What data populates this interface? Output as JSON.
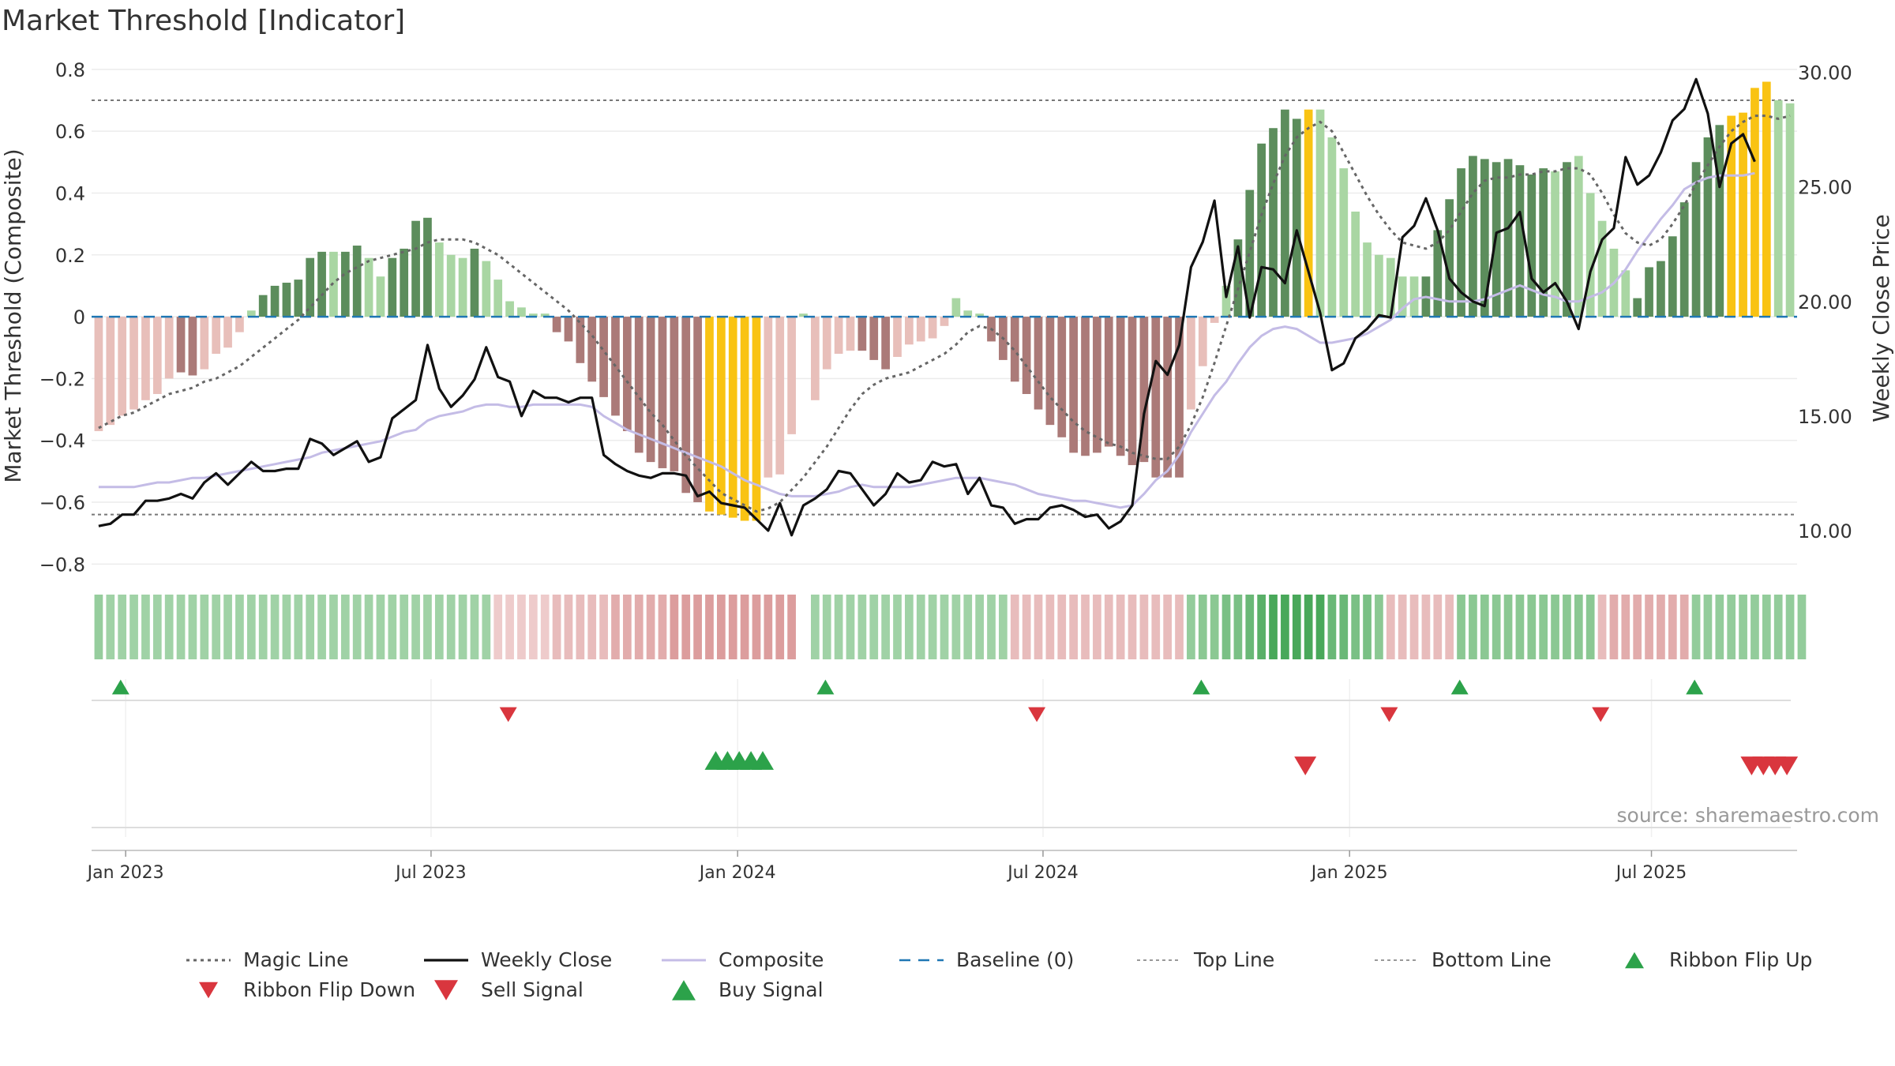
{
  "chart_data": {
    "type": "bar",
    "title": "Market Threshold [Indicator]",
    "ylabel": "Market Threshold (Composite)",
    "ylabel_right": "Weekly Close Price",
    "ylim": [
      -0.84,
      0.82
    ],
    "ylim_right": [
      8.0,
      30.4
    ],
    "y_ticks": [
      0.8,
      0.6,
      0.4,
      0.2,
      0,
      -0.2,
      -0.4,
      -0.6,
      -0.8
    ],
    "y_tick_labels": [
      "0.8",
      "0.6",
      "0.4",
      "0.2",
      "0",
      "−0.2",
      "−0.4",
      "−0.6",
      "−0.8"
    ],
    "y_right_ticks": [
      30,
      25,
      20,
      15,
      10
    ],
    "y_right_tick_labels": [
      "30.00",
      "25.00",
      "20.00",
      "15.00",
      "10.00"
    ],
    "x_ticks": [
      2.3,
      28.3,
      54.4,
      80.4,
      106.5,
      132.2
    ],
    "x_tick_labels": [
      "Jan 2023",
      "Jul 2023",
      "Jan 2024",
      "Jul 2024",
      "Jan 2025",
      "Jul 2025"
    ],
    "x_range": [
      -0.6,
      144.6
    ],
    "top_line": 0.7,
    "bottom_line": -0.64,
    "baseline": 0,
    "bar_colors": {
      "strong_pos": "#5c8d5c",
      "weak_pos": "#a9d6a3",
      "strong_neg": "#ab7a78",
      "weak_neg": "#e8bfba",
      "extreme": "#f9c313"
    },
    "composite_bars": [
      -0.37,
      -0.35,
      -0.32,
      -0.3,
      -0.27,
      -0.25,
      -0.2,
      -0.18,
      -0.19,
      -0.17,
      -0.12,
      -0.1,
      -0.05,
      0.02,
      0.07,
      0.1,
      0.11,
      0.12,
      0.19,
      0.21,
      0.21,
      0.21,
      0.23,
      0.19,
      0.13,
      0.19,
      0.22,
      0.31,
      0.32,
      0.24,
      0.2,
      0.19,
      0.22,
      0.18,
      0.12,
      0.05,
      0.03,
      0.01,
      0.01,
      -0.05,
      -0.08,
      -0.15,
      -0.21,
      -0.26,
      -0.32,
      -0.37,
      -0.44,
      -0.47,
      -0.49,
      -0.5,
      -0.57,
      -0.6,
      -0.63,
      -0.64,
      -0.65,
      -0.66,
      -0.66,
      -0.52,
      -0.51,
      -0.38,
      0.01,
      -0.27,
      -0.17,
      -0.12,
      -0.11,
      -0.11,
      -0.14,
      -0.17,
      -0.13,
      -0.09,
      -0.08,
      -0.07,
      -0.03,
      0.06,
      0.02,
      0.01,
      -0.08,
      -0.14,
      -0.21,
      -0.25,
      -0.3,
      -0.35,
      -0.39,
      -0.44,
      -0.45,
      -0.44,
      -0.42,
      -0.45,
      -0.48,
      -0.47,
      -0.52,
      -0.52,
      -0.52,
      -0.3,
      -0.16,
      -0.02,
      0.1,
      0.25,
      0.41,
      0.56,
      0.61,
      0.67,
      0.64,
      0.67,
      0.67,
      0.58,
      0.48,
      0.34,
      0.24,
      0.2,
      0.19,
      0.13,
      0.13,
      0.13,
      0.28,
      0.38,
      0.48,
      0.52,
      0.51,
      0.5,
      0.51,
      0.49,
      0.46,
      0.48,
      0.47,
      0.5,
      0.52,
      0.4,
      0.31,
      0.22,
      0.15,
      0.06,
      0.16,
      0.18,
      0.26,
      0.37,
      0.5,
      0.58,
      0.62,
      0.65,
      0.66,
      0.74,
      0.76,
      0.7,
      0.69
    ],
    "bar_strength": [
      0,
      0,
      0,
      0,
      0,
      0,
      0,
      1,
      1,
      0,
      0,
      0,
      0,
      0,
      1,
      1,
      1,
      1,
      1,
      1,
      0,
      1,
      1,
      0,
      0,
      1,
      1,
      1,
      1,
      0,
      0,
      0,
      1,
      0,
      0,
      0,
      0,
      0,
      0,
      1,
      1,
      1,
      1,
      1,
      1,
      1,
      1,
      1,
      1,
      1,
      1,
      1,
      2,
      2,
      2,
      2,
      2,
      0,
      0,
      0,
      0,
      0,
      0,
      0,
      0,
      1,
      1,
      1,
      0,
      0,
      0,
      0,
      0,
      0,
      0,
      0,
      1,
      1,
      1,
      1,
      1,
      1,
      1,
      1,
      1,
      1,
      1,
      1,
      1,
      1,
      1,
      1,
      1,
      0,
      0,
      0,
      0,
      1,
      1,
      1,
      1,
      1,
      1,
      2,
      0,
      0,
      0,
      0,
      0,
      0,
      0,
      0,
      0,
      1,
      1,
      1,
      1,
      1,
      1,
      1,
      1,
      1,
      1,
      1,
      0,
      1,
      0,
      0,
      0,
      0,
      0,
      1,
      1,
      1,
      1,
      1,
      1,
      1,
      1,
      2,
      2,
      2,
      2
    ],
    "weekly_close": [
      10.2,
      10.3,
      10.7,
      10.7,
      11.3,
      11.3,
      11.4,
      11.6,
      11.4,
      12.1,
      12.5,
      12.0,
      12.5,
      13.0,
      12.6,
      12.6,
      12.7,
      12.7,
      14.0,
      13.8,
      13.3,
      13.6,
      13.9,
      13.0,
      13.2,
      14.9,
      15.3,
      15.7,
      18.1,
      16.2,
      15.4,
      15.9,
      16.6,
      18.0,
      16.7,
      16.5,
      15.0,
      16.1,
      15.8,
      15.8,
      15.6,
      15.8,
      15.8,
      13.3,
      12.9,
      12.6,
      12.4,
      12.3,
      12.5,
      12.5,
      12.4,
      11.5,
      11.7,
      11.2,
      11.1,
      11.0,
      10.5,
      10.0,
      11.2,
      9.8,
      11.1,
      11.4,
      11.8,
      12.6,
      12.5,
      11.8,
      11.1,
      11.6,
      12.5,
      12.1,
      12.2,
      13.0,
      12.8,
      12.9,
      11.6,
      12.3,
      11.1,
      11.0,
      10.3,
      10.5,
      10.5,
      11.0,
      11.1,
      10.9,
      10.6,
      10.7,
      10.1,
      10.4,
      11.1,
      15.1,
      17.4,
      16.8,
      18.1,
      21.5,
      22.6,
      24.4,
      20.2,
      22.4,
      19.3,
      21.5,
      21.4,
      20.8,
      23.1,
      21.3,
      19.5,
      17.0,
      17.3,
      18.4,
      18.8,
      19.4,
      19.3,
      22.8,
      23.3,
      24.5,
      23.1,
      21.0,
      20.4,
      20.0,
      19.8,
      23.0,
      23.2,
      23.9,
      21.0,
      20.4,
      20.8,
      20.0,
      18.8,
      21.3,
      22.7,
      23.2,
      26.3,
      25.1,
      25.5,
      26.5,
      27.9,
      28.4,
      29.7,
      28.2,
      25.0,
      26.9,
      27.3,
      26.1
    ],
    "composite_line": [
      11.9,
      11.9,
      11.9,
      11.9,
      12.0,
      12.1,
      12.1,
      12.2,
      12.3,
      12.3,
      12.4,
      12.5,
      12.6,
      12.7,
      12.8,
      12.9,
      13.0,
      13.1,
      13.2,
      13.4,
      13.5,
      13.6,
      13.7,
      13.8,
      13.9,
      14.1,
      14.3,
      14.4,
      14.8,
      15.0,
      15.1,
      15.2,
      15.4,
      15.5,
      15.5,
      15.4,
      15.4,
      15.5,
      15.5,
      15.5,
      15.5,
      15.5,
      15.4,
      15.0,
      14.7,
      14.4,
      14.2,
      14.0,
      13.8,
      13.6,
      13.4,
      13.2,
      13.0,
      12.8,
      12.5,
      12.2,
      12.0,
      11.8,
      11.6,
      11.5,
      11.5,
      11.5,
      11.6,
      11.7,
      11.9,
      12.0,
      11.9,
      11.9,
      11.9,
      11.9,
      12.0,
      12.1,
      12.2,
      12.3,
      12.3,
      12.3,
      12.2,
      12.1,
      12.0,
      11.8,
      11.6,
      11.5,
      11.4,
      11.3,
      11.3,
      11.2,
      11.1,
      11.0,
      11.1,
      11.6,
      12.2,
      12.6,
      13.3,
      14.3,
      15.1,
      15.9,
      16.5,
      17.3,
      18.0,
      18.5,
      18.8,
      18.9,
      18.8,
      18.5,
      18.2,
      18.2,
      18.3,
      18.4,
      18.6,
      18.9,
      19.2,
      19.7,
      20.1,
      20.2,
      20.1,
      20.0,
      20.0,
      20.0,
      20.1,
      20.3,
      20.5,
      20.7,
      20.5,
      20.3,
      20.2,
      20.0,
      20.0,
      20.2,
      20.4,
      20.8,
      21.4,
      22.2,
      22.9,
      23.6,
      24.2,
      24.9,
      25.2,
      25.4,
      25.5,
      25.5,
      25.5,
      25.6
    ],
    "magic_line": [
      -0.36,
      -0.34,
      -0.32,
      -0.31,
      -0.29,
      -0.27,
      -0.25,
      -0.24,
      -0.23,
      -0.21,
      -0.2,
      -0.18,
      -0.16,
      -0.13,
      -0.1,
      -0.07,
      -0.04,
      -0.01,
      0.03,
      0.07,
      0.11,
      0.14,
      0.16,
      0.18,
      0.19,
      0.2,
      0.21,
      0.22,
      0.24,
      0.25,
      0.25,
      0.25,
      0.24,
      0.22,
      0.2,
      0.17,
      0.14,
      0.11,
      0.08,
      0.05,
      0.02,
      -0.02,
      -0.06,
      -0.11,
      -0.16,
      -0.21,
      -0.26,
      -0.31,
      -0.35,
      -0.4,
      -0.45,
      -0.49,
      -0.53,
      -0.57,
      -0.59,
      -0.61,
      -0.63,
      -0.62,
      -0.6,
      -0.56,
      -0.52,
      -0.47,
      -0.42,
      -0.36,
      -0.3,
      -0.25,
      -0.22,
      -0.2,
      -0.19,
      -0.18,
      -0.16,
      -0.14,
      -0.12,
      -0.09,
      -0.05,
      -0.03,
      -0.04,
      -0.07,
      -0.11,
      -0.16,
      -0.21,
      -0.26,
      -0.3,
      -0.34,
      -0.37,
      -0.39,
      -0.41,
      -0.42,
      -0.44,
      -0.45,
      -0.46,
      -0.46,
      -0.42,
      -0.35,
      -0.26,
      -0.15,
      -0.03,
      0.09,
      0.21,
      0.33,
      0.43,
      0.52,
      0.58,
      0.61,
      0.63,
      0.6,
      0.53,
      0.46,
      0.39,
      0.33,
      0.28,
      0.24,
      0.23,
      0.22,
      0.24,
      0.28,
      0.34,
      0.4,
      0.44,
      0.45,
      0.45,
      0.46,
      0.46,
      0.47,
      0.47,
      0.48,
      0.48,
      0.46,
      0.4,
      0.33,
      0.27,
      0.24,
      0.23,
      0.25,
      0.3,
      0.36,
      0.43,
      0.49,
      0.55,
      0.6,
      0.63,
      0.65,
      0.65,
      0.64,
      0.65
    ],
    "ribbon": [
      0.18,
      0.12,
      0.12,
      0.12,
      0.12,
      0.12,
      0.12,
      0.12,
      0.12,
      0.12,
      0.12,
      0.12,
      0.12,
      0.12,
      0.12,
      0.12,
      0.12,
      0.12,
      0.12,
      0.12,
      0.12,
      0.12,
      0.12,
      0.12,
      0.12,
      0.12,
      0.12,
      0.12,
      0.12,
      0.12,
      0.12,
      0.12,
      0.12,
      0.12,
      -0.2,
      -0.2,
      -0.2,
      -0.2,
      -0.2,
      -0.25,
      -0.25,
      -0.25,
      -0.25,
      -0.25,
      -0.3,
      -0.3,
      -0.3,
      -0.3,
      -0.3,
      -0.35,
      -0.35,
      -0.35,
      -0.35,
      -0.35,
      -0.35,
      -0.35,
      -0.35,
      -0.35,
      -0.35,
      -0.35,
      null,
      0.12,
      0.12,
      0.12,
      0.12,
      0.12,
      0.12,
      0.12,
      0.12,
      0.12,
      0.12,
      0.12,
      0.12,
      0.12,
      0.12,
      0.12,
      0.12,
      0.12,
      -0.25,
      -0.25,
      -0.25,
      -0.25,
      -0.25,
      -0.25,
      -0.25,
      -0.25,
      -0.25,
      -0.25,
      -0.25,
      -0.25,
      -0.25,
      -0.25,
      -0.25,
      0.2,
      0.25,
      0.25,
      0.35,
      0.35,
      0.45,
      0.55,
      0.65,
      0.65,
      0.65,
      0.65,
      0.65,
      0.45,
      0.45,
      0.35,
      0.35,
      0.25,
      -0.25,
      -0.25,
      -0.25,
      -0.25,
      -0.25,
      -0.25,
      0.25,
      0.25,
      0.25,
      0.25,
      0.25,
      0.25,
      0.25,
      0.25,
      0.25,
      0.25,
      0.25,
      0.25,
      -0.25,
      -0.3,
      -0.3,
      -0.3,
      -0.3,
      -0.3,
      -0.3,
      -0.3,
      0.2,
      0.2,
      0.2,
      0.2,
      0.2,
      0.2,
      0.2,
      0.2,
      0.2,
      0.2
    ],
    "ribbon_colors": {
      "pos_hue": [
        160,
        210,
        166
      ],
      "pos_strong": [
        62,
        163,
        80
      ],
      "neg_hue": [
        244,
        218,
        218
      ],
      "neg_strong": [
        214,
        142,
        142
      ]
    },
    "ribbon_flip_up": [
      1,
      61,
      93,
      115,
      135
    ],
    "ribbon_flip_down": [
      34,
      79,
      109,
      127
    ],
    "buy_signal": [
      52,
      53,
      54,
      55,
      56
    ],
    "sell_signal": [
      103,
      141,
      142,
      143,
      144
    ],
    "colors": {
      "magic": "#666666",
      "close": "#111111",
      "composite": "#c4bce6",
      "baseline": "#1f77b4",
      "ref_line": "#777777",
      "up": "#2ca24a",
      "down": "#d9363e",
      "grid": "#ececec"
    },
    "source_label": "source: sharemaestro.com",
    "legend": [
      {
        "label": "Magic Line",
        "kind": "dotted"
      },
      {
        "label": "Weekly Close",
        "kind": "solid"
      },
      {
        "label": "Composite",
        "kind": "composite"
      },
      {
        "label": "Baseline (0)",
        "kind": "dashed"
      },
      {
        "label": "Top Line",
        "kind": "ref"
      },
      {
        "label": "Bottom Line",
        "kind": "ref"
      },
      {
        "label": "Ribbon Flip Up",
        "kind": "tri-up-small"
      },
      {
        "label": "Ribbon Flip Down",
        "kind": "tri-down-small"
      },
      {
        "label": "Sell Signal",
        "kind": "tri-down"
      },
      {
        "label": "Buy Signal",
        "kind": "tri-up"
      }
    ]
  }
}
